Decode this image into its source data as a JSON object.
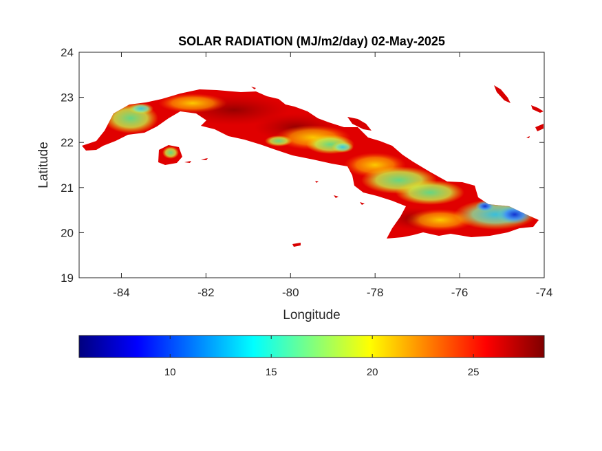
{
  "title": "SOLAR RADIATION (MJ/m2/day) 02-May-2025",
  "xlabel": "Longitude",
  "ylabel": "Latitude",
  "xlim": [
    -85,
    -74
  ],
  "ylim": [
    19,
    24
  ],
  "xticks": [
    -84,
    -82,
    -80,
    -78,
    -76,
    -74
  ],
  "yticks": [
    19,
    20,
    21,
    22,
    23,
    24
  ],
  "xtick_labels": [
    "-84",
    "-82",
    "-80",
    "-78",
    "-76",
    "-74"
  ],
  "ytick_labels": [
    "19",
    "20",
    "21",
    "22",
    "23",
    "24"
  ],
  "colorbar": {
    "colormap": "jet",
    "range": [
      5.5,
      28.5
    ],
    "ticks": [
      10,
      15,
      20,
      25
    ],
    "tick_labels": [
      "10",
      "15",
      "20",
      "25"
    ],
    "placement": "bottom"
  },
  "colors": {
    "land_base": "#e00000",
    "land_dark": "#a00000",
    "sea": "#ffffff",
    "axis": "#262626"
  },
  "map": {
    "region": "Cuba",
    "variable": "solar radiation",
    "value_pattern": [
      {
        "lon": -83.6,
        "lat": 22.6,
        "value": 17
      },
      {
        "lon": -79.5,
        "lat": 22.0,
        "value": 18
      },
      {
        "lon": -78.8,
        "lat": 21.9,
        "value": 15
      },
      {
        "lon": -77.5,
        "lat": 21.2,
        "value": 19
      },
      {
        "lon": -76.8,
        "lat": 20.9,
        "value": 20
      },
      {
        "lon": -75.8,
        "lat": 20.4,
        "value": 16
      },
      {
        "lon": -75.0,
        "lat": 20.35,
        "value": 9
      },
      {
        "lon": -82.0,
        "lat": 22.9,
        "value": 22
      },
      {
        "lon": -80.5,
        "lat": 22.7,
        "value": 26
      },
      {
        "lon": -77.5,
        "lat": 20.3,
        "value": 24
      }
    ]
  }
}
